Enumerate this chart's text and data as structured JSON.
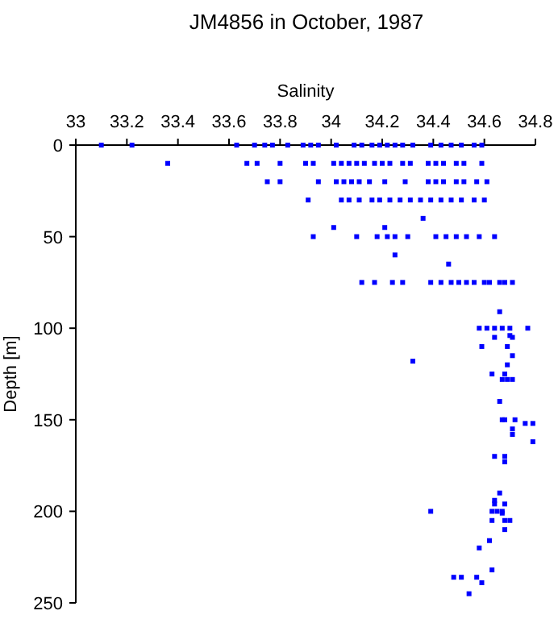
{
  "chart_data": {
    "type": "scatter",
    "title": "JM4856 in October, 1987",
    "xlabel": "Salinity",
    "ylabel": "Depth [m]",
    "xlim": [
      33,
      34.8
    ],
    "xticks": [
      33,
      33.2,
      33.4,
      33.6,
      33.8,
      34,
      34.2,
      34.4,
      34.6,
      34.8
    ],
    "ylim": [
      250,
      0
    ],
    "yticks": [
      0,
      50,
      100,
      150,
      200,
      250
    ],
    "marker": "square",
    "series": [
      {
        "color": "#0000ff",
        "x": [
          33.1,
          33.22,
          33.63,
          33.7,
          33.74,
          33.77,
          33.83,
          33.89,
          33.92,
          33.95,
          34.02,
          34.09,
          34.12,
          34.16,
          34.19,
          34.22,
          34.25,
          34.28,
          34.32,
          34.39,
          34.43,
          34.47,
          34.51,
          34.56,
          34.59,
          33.36,
          33.67,
          33.71,
          33.8,
          33.9,
          33.93,
          34.01,
          34.04,
          34.07,
          34.1,
          34.13,
          34.17,
          34.2,
          34.23,
          34.28,
          34.31,
          34.38,
          34.41,
          34.44,
          34.49,
          34.52,
          34.59,
          33.75,
          33.8,
          33.95,
          34.02,
          34.05,
          34.08,
          34.11,
          34.15,
          34.21,
          34.29,
          34.38,
          34.41,
          34.44,
          34.49,
          34.52,
          34.57,
          34.61,
          33.91,
          34.04,
          34.07,
          34.11,
          34.16,
          34.19,
          34.23,
          34.27,
          34.31,
          34.35,
          34.39,
          34.43,
          34.47,
          34.51,
          34.56,
          34.6,
          34.36,
          34.01,
          34.21,
          33.93,
          34.1,
          34.18,
          34.22,
          34.25,
          34.3,
          34.41,
          34.45,
          34.49,
          34.53,
          34.58,
          34.64,
          34.25,
          34.46,
          34.12,
          34.17,
          34.24,
          34.28,
          34.39,
          34.43,
          34.47,
          34.5,
          34.53,
          34.56,
          34.6,
          34.62,
          34.66,
          34.68,
          34.71,
          34.66,
          34.58,
          34.61,
          34.64,
          34.67,
          34.7,
          34.77,
          34.7,
          34.64,
          34.71,
          34.59,
          34.69,
          34.71,
          34.32,
          34.69,
          34.63,
          34.68,
          34.67,
          34.69,
          34.71,
          34.66,
          34.67,
          34.68,
          34.72,
          34.76,
          34.79,
          34.71,
          34.71,
          34.79,
          34.68,
          34.64,
          34.68,
          34.66,
          34.64,
          34.64,
          34.68,
          34.39,
          34.63,
          34.65,
          34.67,
          34.67,
          34.63,
          34.68,
          34.7,
          34.68,
          34.62,
          34.58,
          34.63,
          34.48,
          34.51,
          34.57,
          34.59,
          34.54
        ],
        "values": [
          0,
          0,
          0,
          0,
          0,
          0,
          0,
          0,
          0,
          0,
          0,
          0,
          0,
          0,
          0,
          0,
          0,
          0,
          0,
          0,
          0,
          0,
          0,
          0,
          0,
          10,
          10,
          10,
          10,
          10,
          10,
          10,
          10,
          10,
          10,
          10,
          10,
          10,
          10,
          10,
          10,
          10,
          10,
          10,
          10,
          10,
          10,
          20,
          20,
          20,
          20,
          20,
          20,
          20,
          20,
          20,
          20,
          20,
          20,
          20,
          20,
          20,
          20,
          20,
          30,
          30,
          30,
          30,
          30,
          30,
          30,
          30,
          30,
          30,
          30,
          30,
          30,
          30,
          30,
          30,
          40,
          45,
          45,
          50,
          50,
          50,
          50,
          50,
          50,
          50,
          50,
          50,
          50,
          50,
          50,
          60,
          65,
          75,
          75,
          75,
          75,
          75,
          75,
          75,
          75,
          75,
          75,
          75,
          75,
          75,
          75,
          75,
          91,
          100,
          100,
          100,
          100,
          100,
          100,
          104,
          105,
          105,
          110,
          110,
          115,
          118,
          120,
          125,
          125,
          128,
          128,
          128,
          140,
          150,
          150,
          150,
          152,
          152,
          155,
          158,
          162,
          170,
          170,
          173,
          190,
          194,
          196,
          196,
          200,
          200,
          200,
          200,
          201,
          205,
          205,
          205,
          210,
          216,
          220,
          232,
          236,
          236,
          236,
          239,
          245
        ]
      }
    ]
  }
}
